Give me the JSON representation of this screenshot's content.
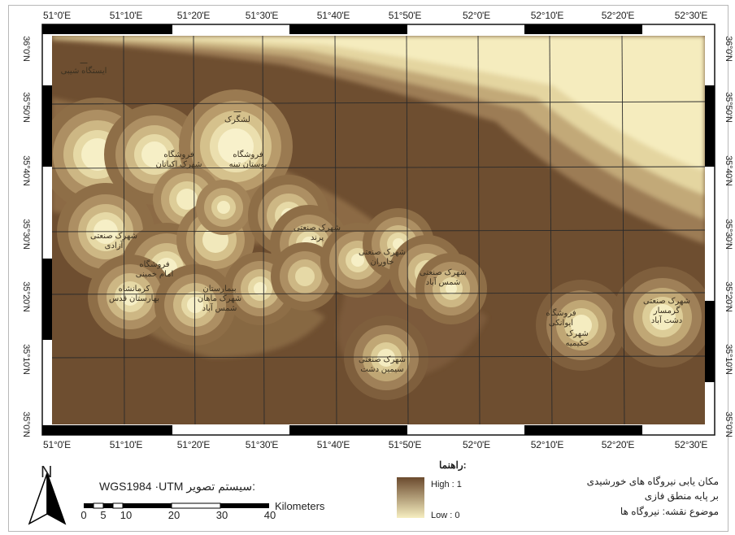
{
  "map": {
    "top_ticks": [
      "51°0'E",
      "51°10'E",
      "51°20'E",
      "51°30'E",
      "51°40'E",
      "51°50'E",
      "52°0'E",
      "52°10'E",
      "52°20'E",
      "52°30'E"
    ],
    "bottom_ticks": [
      "51°0'E",
      "51°10'E",
      "51°20'E",
      "51°30'E",
      "51°40'E",
      "51°50'E",
      "52°0'E",
      "52°10'E",
      "52°20'E",
      "52°30'E"
    ],
    "left_ticks": [
      "36°0'N",
      "35°50'N",
      "35°40'N",
      "35°30'N",
      "35°20'N",
      "35°10'N",
      "35°0'N"
    ],
    "right_ticks": [
      "36°0'N",
      "35°50'N",
      "35°40'N",
      "35°30'N",
      "35°20'N",
      "35°10'N",
      "35°0'N"
    ],
    "colors": {
      "high": "#f6eec0",
      "low": "#6b4a2e",
      "graticule": "#2a2a2a"
    },
    "places": [
      {
        "id": "p1",
        "lines": [
          "ـــ",
          "ایستگاه شیبی"
        ]
      },
      {
        "id": "p2",
        "lines": [
          "ـــ",
          "لشگرک"
        ]
      },
      {
        "id": "p3",
        "lines": [
          "فروشگاه",
          "شهرک اکباتان"
        ]
      },
      {
        "id": "p4",
        "lines": [
          "فروشگاه",
          "بوستان تینه"
        ]
      },
      {
        "id": "p5",
        "lines": [
          "شهرک صنعتی",
          "آزادی"
        ]
      },
      {
        "id": "p6",
        "lines": [
          "فروشگاه",
          "امام خمینی"
        ]
      },
      {
        "id": "p7",
        "lines": [
          "کرمانشاه",
          "بهارستان قدس"
        ]
      },
      {
        "id": "p8",
        "lines": [
          "بیمارستان",
          "شهرک ماهان",
          "شمس آباد"
        ]
      },
      {
        "id": "p9",
        "lines": [
          "شهرک صنعتی",
          "پرند"
        ]
      },
      {
        "id": "p10",
        "lines": [
          "شهرک صنعتی",
          "خاوران"
        ]
      },
      {
        "id": "p11",
        "lines": [
          "شهرک صنعتی",
          "شمس آباد"
        ]
      },
      {
        "id": "p12",
        "lines": [
          "شهرک صنعتی",
          "سیمین دشت"
        ]
      },
      {
        "id": "p13",
        "lines": [
          "فروشگاه",
          "ایوانکی"
        ]
      },
      {
        "id": "p14",
        "lines": [
          "شهرک صنعتی",
          "گرمسار",
          "دشت آباد"
        ]
      },
      {
        "id": "p15",
        "lines": [
          "شهرک",
          "حکیمیه"
        ]
      }
    ]
  },
  "legend": {
    "north_letter": "N",
    "scale_title": "WGS1984 ·UTM سیستم تصویر:",
    "scale_numbers": [
      "0",
      "5",
      "10",
      "20",
      "30",
      "40"
    ],
    "scale_units": "Kilometers",
    "title": "راهنما:",
    "high_label": "High : 1",
    "low_label": "Low : 0",
    "caption_lines": [
      "مکان یابی نیروگاه های خورشیدی",
      "بر پایه منطق فازی",
      "موضوع نقشه: نیروگاه ها"
    ]
  }
}
